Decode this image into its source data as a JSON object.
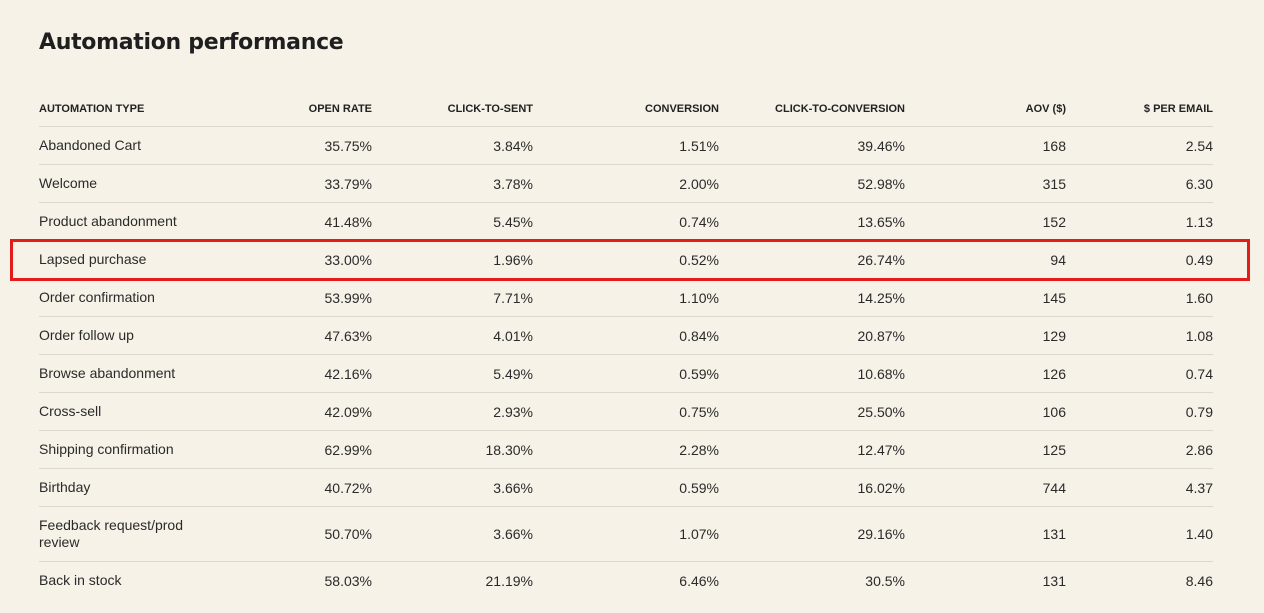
{
  "title": "Automation performance",
  "columns": {
    "type": "AUTOMATION TYPE",
    "open_rate": "OPEN RATE",
    "click_to_sent": "CLICK-TO-SENT",
    "conversion": "CONVERSION",
    "click_to_conversion": "CLICK-TO-CONVERSION",
    "aov": "AOV ($)",
    "per_email": "$ PER EMAIL"
  },
  "rows": [
    {
      "type": "Abandoned Cart",
      "open_rate": "35.75%",
      "click_to_sent": "3.84%",
      "conversion": "1.51%",
      "click_to_conversion": "39.46%",
      "aov": "168",
      "per_email": "2.54"
    },
    {
      "type": "Welcome",
      "open_rate": "33.79%",
      "click_to_sent": "3.78%",
      "conversion": "2.00%",
      "click_to_conversion": "52.98%",
      "aov": "315",
      "per_email": "6.30"
    },
    {
      "type": "Product abandonment",
      "open_rate": "41.48%",
      "click_to_sent": "5.45%",
      "conversion": "0.74%",
      "click_to_conversion": "13.65%",
      "aov": "152",
      "per_email": "1.13"
    },
    {
      "type": "Lapsed purchase",
      "open_rate": "33.00%",
      "click_to_sent": "1.96%",
      "conversion": "0.52%",
      "click_to_conversion": "26.74%",
      "aov": "94",
      "per_email": "0.49"
    },
    {
      "type": "Order confirmation",
      "open_rate": "53.99%",
      "click_to_sent": "7.71%",
      "conversion": "1.10%",
      "click_to_conversion": "14.25%",
      "aov": "145",
      "per_email": "1.60"
    },
    {
      "type": "Order follow up",
      "open_rate": "47.63%",
      "click_to_sent": "4.01%",
      "conversion": "0.84%",
      "click_to_conversion": "20.87%",
      "aov": "129",
      "per_email": "1.08"
    },
    {
      "type": "Browse abandonment",
      "open_rate": "42.16%",
      "click_to_sent": "5.49%",
      "conversion": "0.59%",
      "click_to_conversion": "10.68%",
      "aov": "126",
      "per_email": "0.74"
    },
    {
      "type": "Cross-sell",
      "open_rate": "42.09%",
      "click_to_sent": "2.93%",
      "conversion": "0.75%",
      "click_to_conversion": "25.50%",
      "aov": "106",
      "per_email": "0.79"
    },
    {
      "type": "Shipping confirmation",
      "open_rate": "62.99%",
      "click_to_sent": "18.30%",
      "conversion": "2.28%",
      "click_to_conversion": "12.47%",
      "aov": "125",
      "per_email": "2.86"
    },
    {
      "type": "Birthday",
      "open_rate": "40.72%",
      "click_to_sent": "3.66%",
      "conversion": "0.59%",
      "click_to_conversion": "16.02%",
      "aov": "744",
      "per_email": "4.37"
    },
    {
      "type": "Feedback request/prod review",
      "open_rate": "50.70%",
      "click_to_sent": "3.66%",
      "conversion": "1.07%",
      "click_to_conversion": "29.16%",
      "aov": "131",
      "per_email": "1.40"
    },
    {
      "type": "Back in stock",
      "open_rate": "58.03%",
      "click_to_sent": "21.19%",
      "conversion": "6.46%",
      "click_to_conversion": "30.5%",
      "aov": "131",
      "per_email": "8.46"
    }
  ],
  "highlight_color": "#e31b1b"
}
